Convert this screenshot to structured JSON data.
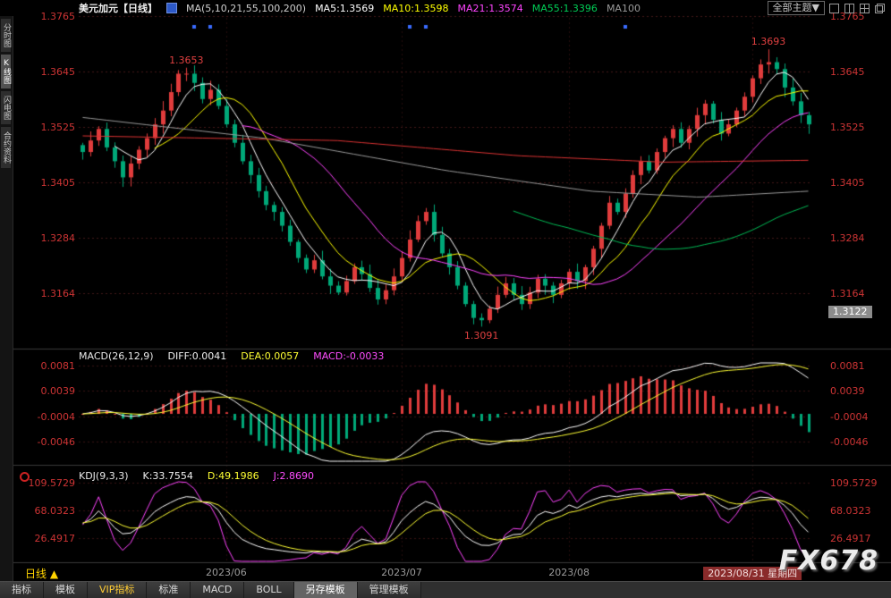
{
  "topbar": {
    "symbol": "美元加元【日线】",
    "ma_settings": "MA(5,10,21,55,100,200)",
    "ma_values": [
      {
        "label": "MA5:1.3569",
        "color": "#ffffff"
      },
      {
        "label": "MA10:1.3598",
        "color": "#ffff00"
      },
      {
        "label": "MA21:1.3574",
        "color": "#ff44ff"
      },
      {
        "label": "MA55:1.3396",
        "color": "#00cc55"
      },
      {
        "label": "MA100",
        "color": "#999999"
      }
    ],
    "theme_selector": "全部主题▼"
  },
  "sidebar": {
    "items": [
      {
        "label": "分时图",
        "active": false
      },
      {
        "label": "K线图",
        "active": true
      },
      {
        "label": "闪电图",
        "active": false
      },
      {
        "label": "合约资料",
        "active": false
      }
    ]
  },
  "main_chart": {
    "axis_labels": [
      "1.3765",
      "1.3645",
      "1.3525",
      "1.3405",
      "1.3284",
      "1.3164"
    ],
    "axis_badge": "1.3122",
    "annotations": [
      {
        "index": 13,
        "price": 1.3653,
        "label": "1.3653",
        "position": "above"
      },
      {
        "index": 86,
        "price": 1.3693,
        "label": "1.3693",
        "position": "above"
      },
      {
        "index": 50,
        "price": 1.3091,
        "label": "1.3091",
        "position": "below"
      }
    ]
  },
  "macd_panel": {
    "title": "MACD(26,12,9)",
    "diff": "DIFF:0.0041",
    "dea": "DEA:0.0057",
    "macd": "MACD:-0.0033",
    "axis_labels": [
      "0.0081",
      "0.0039",
      "-0.0004",
      "-0.0046"
    ]
  },
  "kdj_panel": {
    "title": "KDJ(9,3,3)",
    "k": "K:33.7554",
    "d": "D:49.1986",
    "j": "J:2.8690",
    "axis_labels": [
      "109.5729",
      "68.0323",
      "26.4917"
    ]
  },
  "bottom_bar": {
    "period": "日线",
    "period_arrow": "▲",
    "date_ticks": [
      {
        "index": 18,
        "label": "2023/06",
        "highlight": false
      },
      {
        "index": 40,
        "label": "2023/07",
        "highlight": false
      },
      {
        "index": 61,
        "label": "2023/08",
        "highlight": false
      },
      {
        "index": 84,
        "label": "2023/08/31 星期四",
        "highlight": true
      }
    ],
    "watermark": "FX678"
  },
  "tabbar": {
    "tabs": [
      {
        "label": "指标"
      },
      {
        "label": "模板"
      },
      {
        "label": "VIP指标",
        "color": "#ffcc33"
      },
      {
        "label": "标准"
      },
      {
        "label": "MACD"
      },
      {
        "label": "BOLL"
      },
      {
        "label": "另存模板",
        "highlight": true
      },
      {
        "label": "管理模板"
      }
    ]
  },
  "chart_data": {
    "type": "candlestick",
    "symbol": "USD/CAD 美元加元",
    "timeframe": "daily",
    "price_axis": [
      1.3765,
      1.3645,
      1.3525,
      1.3405,
      1.3284,
      1.3164
    ],
    "marked_extremes": {
      "may_high": 1.3653,
      "aug_high": 1.3693,
      "jul_low": 1.3091
    },
    "last_price_level": 1.3122,
    "closes": [
      1.347,
      1.3495,
      1.352,
      1.348,
      1.345,
      1.3415,
      1.3445,
      1.3475,
      1.35,
      1.353,
      1.356,
      1.36,
      1.364,
      1.364,
      1.362,
      1.3585,
      1.3605,
      1.357,
      1.353,
      1.349,
      1.345,
      1.342,
      1.3385,
      1.3355,
      1.334,
      1.331,
      1.3275,
      1.324,
      1.3215,
      1.3235,
      1.32,
      1.318,
      1.3165,
      1.319,
      1.322,
      1.3205,
      1.3175,
      1.315,
      1.317,
      1.32,
      1.324,
      1.328,
      1.332,
      1.334,
      1.329,
      1.325,
      1.322,
      1.318,
      1.314,
      1.311,
      1.3105,
      1.313,
      1.316,
      1.3185,
      1.316,
      1.314,
      1.3165,
      1.3195,
      1.318,
      1.316,
      1.3185,
      1.321,
      1.319,
      1.322,
      1.326,
      1.331,
      1.336,
      1.334,
      1.338,
      1.342,
      1.345,
      1.343,
      1.347,
      1.35,
      1.352,
      1.349,
      1.352,
      1.355,
      1.3575,
      1.354,
      1.351,
      1.353,
      1.356,
      1.359,
      1.363,
      1.366,
      1.3665,
      1.365,
      1.361,
      1.358,
      1.355,
      1.353
    ],
    "wick_overrides": {
      "13": {
        "high": 1.3653
      },
      "50": {
        "low": 1.3091
      },
      "86": {
        "high": 1.3693
      }
    },
    "event_marker_indices": [
      14,
      16,
      41,
      43,
      68
    ],
    "colors": {
      "up": "#e03c3c",
      "down": "#00a878",
      "marker": "#3a6bff"
    },
    "ma_periods": [
      {
        "p": 5,
        "color": "#ffffff"
      },
      {
        "p": 10,
        "color": "#ffff00"
      },
      {
        "p": 21,
        "color": "#ff44ff"
      },
      {
        "p": 55,
        "color": "#00bb55"
      }
    ],
    "overlay_lines": [
      {
        "name": "MA100",
        "color": "#9a9a9a",
        "keyframes": [
          [
            0,
            1.3545
          ],
          [
            0.25,
            1.35
          ],
          [
            0.5,
            1.343
          ],
          [
            0.7,
            1.3385
          ],
          [
            0.85,
            1.3372
          ],
          [
            1,
            1.3385
          ]
        ]
      },
      {
        "name": "MA200",
        "color": "#dd3333",
        "keyframes": [
          [
            0,
            1.3505
          ],
          [
            0.35,
            1.3495
          ],
          [
            0.6,
            1.3462
          ],
          [
            0.8,
            1.3448
          ],
          [
            1,
            1.3452
          ]
        ]
      }
    ],
    "macd": {
      "fast": 12,
      "slow": 26,
      "signal": 9,
      "final_diff": 0.0041,
      "final_dea": 0.0057,
      "final_hist": -0.0033,
      "axis": [
        0.0081,
        0.0039,
        -0.0004,
        -0.0046
      ]
    },
    "kdj": {
      "params": [
        9,
        3,
        3
      ],
      "final_k": 33.7554,
      "final_d": 49.1986,
      "final_j": 2.869,
      "axis": [
        109.5729,
        68.0323,
        26.4917
      ]
    }
  }
}
